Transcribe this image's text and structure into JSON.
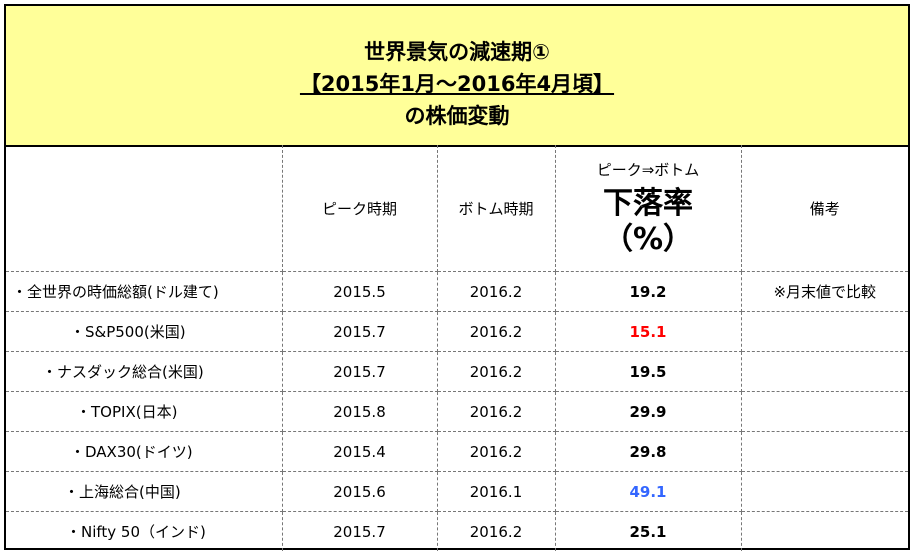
{
  "title": {
    "line1": "世界景気の減速期①",
    "line2": "【2015年1月～2016年4月頃】",
    "line3": "の株価変動"
  },
  "header": {
    "name": "",
    "peak": "ピーク時期",
    "bottom": "ボトム時期",
    "rate_sub": "ピーク⇒ボトム",
    "rate_main": "下落率",
    "rate_unit": "（%）",
    "note": "備考"
  },
  "rows": [
    {
      "name": "・全世界の時価総額(ドル建て)",
      "peak": "2015.5",
      "bottom": "2016.2",
      "rate": "19.2",
      "rate_color": "#000000",
      "note": "※月末値で比較",
      "indent": 6
    },
    {
      "name": "・S&P500(米国)",
      "peak": "2015.7",
      "bottom": "2016.2",
      "rate": "15.1",
      "rate_color": "#ff0000",
      "note": "",
      "indent": 64
    },
    {
      "name": "・ナスダック総合(米国)",
      "peak": "2015.7",
      "bottom": "2016.2",
      "rate": "19.5",
      "rate_color": "#000000",
      "note": "",
      "indent": 36
    },
    {
      "name": "・TOPIX(日本)",
      "peak": "2015.8",
      "bottom": "2016.2",
      "rate": "29.9",
      "rate_color": "#000000",
      "note": "",
      "indent": 70
    },
    {
      "name": "・DAX30(ドイツ)",
      "peak": "2015.4",
      "bottom": "2016.2",
      "rate": "29.8",
      "rate_color": "#000000",
      "note": "",
      "indent": 64
    },
    {
      "name": "・上海総合(中国)",
      "peak": "2015.6",
      "bottom": "2016.1",
      "rate": "49.1",
      "rate_color": "#3366ff",
      "note": "",
      "indent": 58
    },
    {
      "name": "・Nifty 50（インド)",
      "peak": "2015.7",
      "bottom": "2016.2",
      "rate": "25.1",
      "rate_color": "#000000",
      "note": "",
      "indent": 60
    }
  ]
}
